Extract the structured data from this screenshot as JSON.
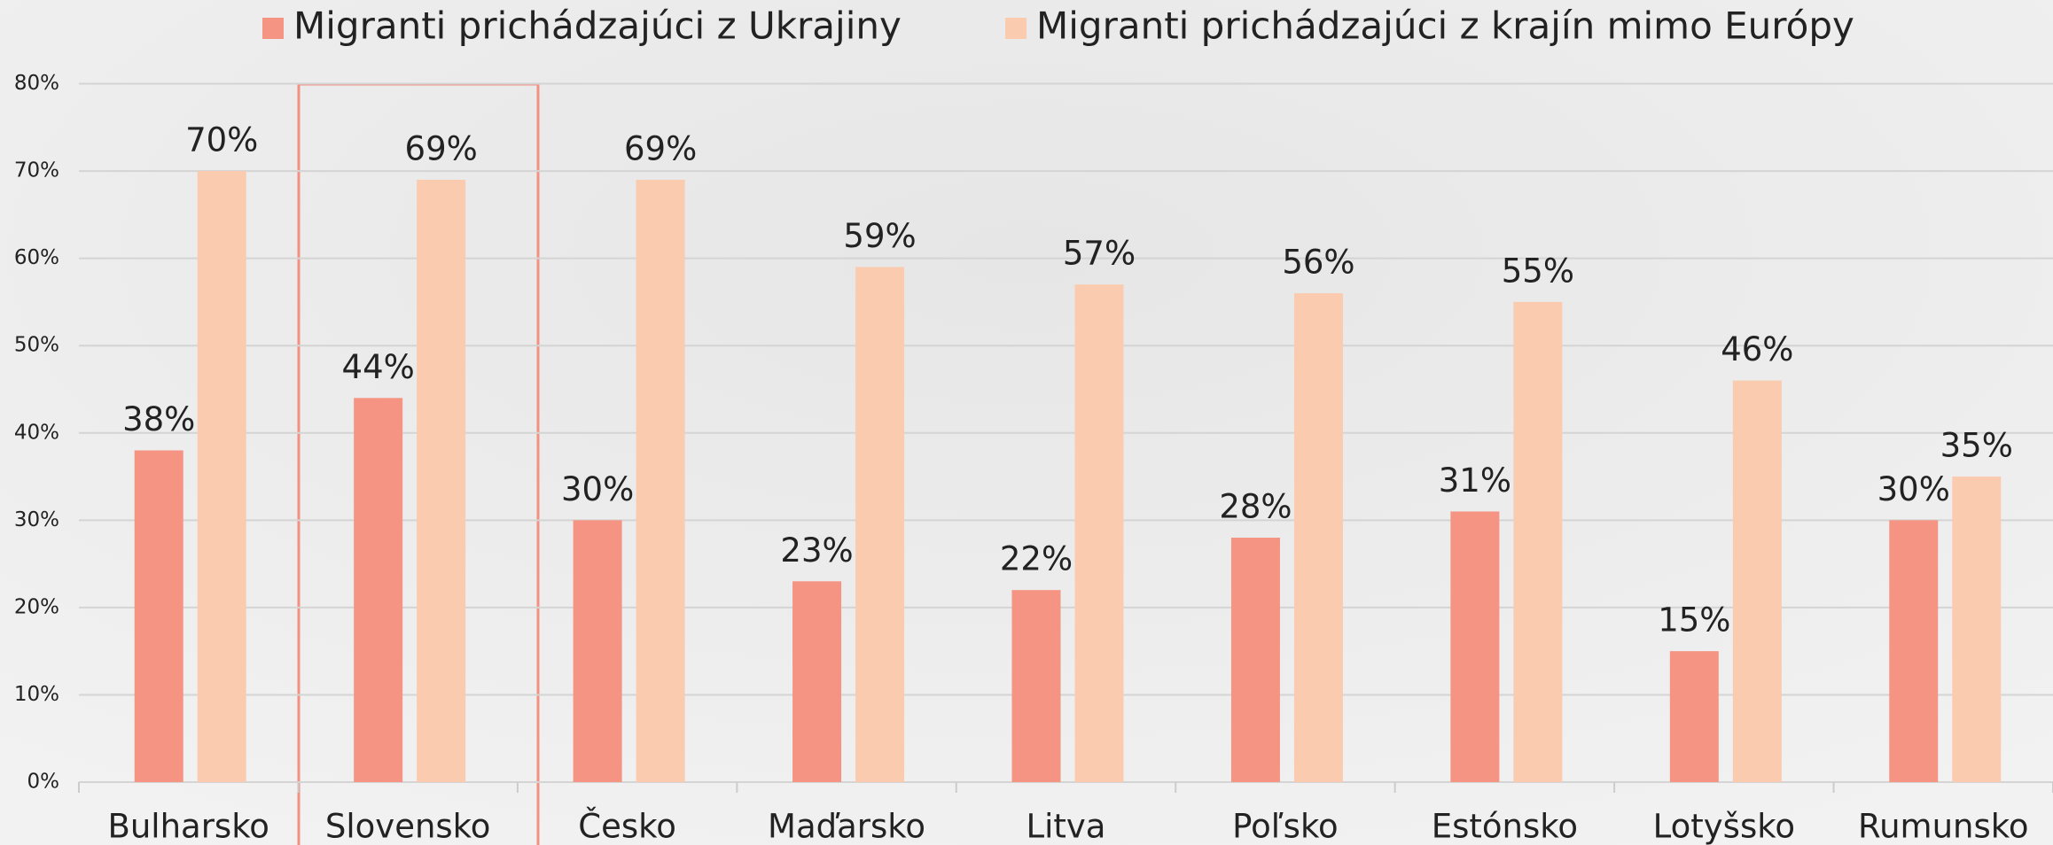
{
  "chart_data": {
    "type": "bar",
    "categories": [
      "Bulharsko",
      "Slovensko",
      "Česko",
      "Maďarsko",
      "Litva",
      "Poľsko",
      "Estónsko",
      "Lotyšsko",
      "Rumunsko"
    ],
    "series": [
      {
        "name": "Migranti prichádzajúci z Ukrajiny",
        "color": "#f59482",
        "values": [
          38,
          44,
          30,
          23,
          22,
          28,
          31,
          15,
          30
        ],
        "value_labels": [
          "38%",
          "44%",
          "30%",
          "23%",
          "22%",
          "28%",
          "31%",
          "15%",
          "30%"
        ]
      },
      {
        "name": "Migranti prichádzajúci z krajín mimo Európy",
        "color": "#fbcbb0",
        "values": [
          70,
          69,
          69,
          59,
          57,
          56,
          55,
          46,
          35
        ],
        "value_labels": [
          "70%",
          "69%",
          "69%",
          "59%",
          "57%",
          "56%",
          "55%",
          "46%",
          "35%"
        ]
      }
    ],
    "ylim": [
      0,
      80
    ],
    "yticks": [
      {
        "value": 0,
        "label": "0%"
      },
      {
        "value": 10,
        "label": "10%"
      },
      {
        "value": 20,
        "label": "20%"
      },
      {
        "value": 30,
        "label": "30%"
      },
      {
        "value": 40,
        "label": "40%"
      },
      {
        "value": 50,
        "label": "50%"
      },
      {
        "value": 60,
        "label": "60%"
      },
      {
        "value": 70,
        "label": "70%"
      },
      {
        "value": 80,
        "label": "80%"
      }
    ],
    "grid": true
  }
}
